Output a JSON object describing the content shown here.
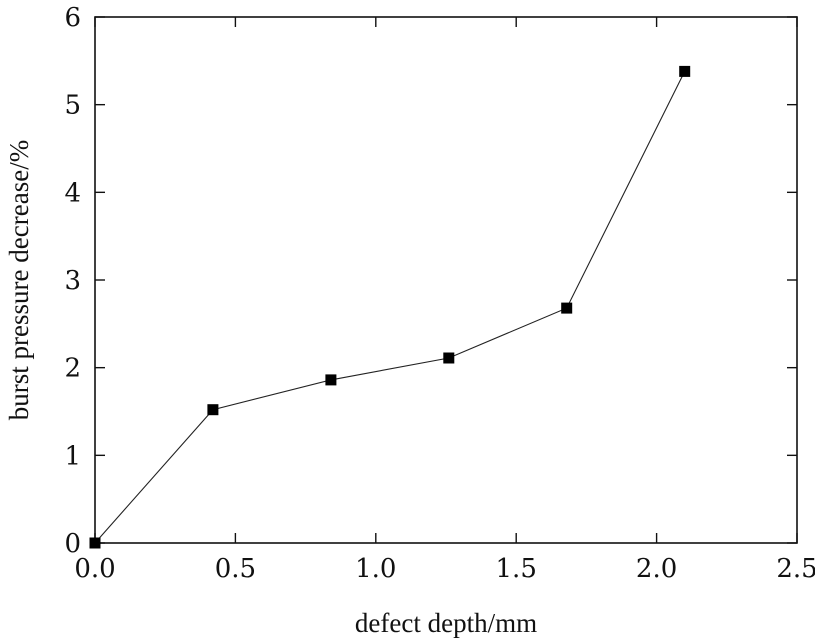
{
  "chart_data": {
    "type": "line",
    "xlabel": "defect depth/mm",
    "ylabel": "burst pressure decrease/%",
    "xlim": [
      0.0,
      2.5
    ],
    "ylim": [
      0,
      6
    ],
    "x_ticks": [
      "0.0",
      "0.5",
      "1.0",
      "1.5",
      "2.0",
      "2.5"
    ],
    "y_ticks": [
      "0",
      "1",
      "2",
      "3",
      "4",
      "5",
      "6"
    ],
    "grid": false,
    "legend": "none",
    "series": [
      {
        "marker": "square",
        "color": "#000000",
        "x": [
          0.0,
          0.42,
          0.84,
          1.26,
          1.68,
          2.1
        ],
        "y": [
          0.0,
          1.52,
          1.86,
          2.11,
          2.68,
          5.38
        ]
      }
    ]
  }
}
